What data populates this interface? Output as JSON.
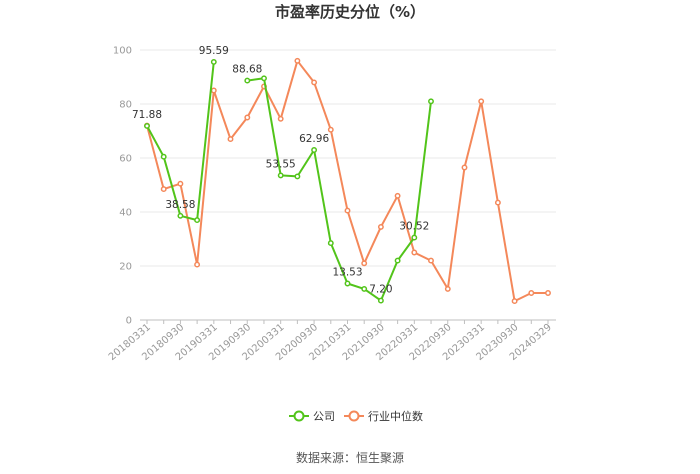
{
  "chart_data": {
    "type": "line",
    "title": "市盈率历史分位（%）",
    "source": "数据来源：恒生聚源",
    "ylim": [
      0,
      100
    ],
    "yticks": [
      0,
      20,
      40,
      60,
      80,
      100
    ],
    "grid": true,
    "legend_position": "bottom",
    "x": [
      "20180331",
      "20180630",
      "20180930",
      "20181231",
      "20190331",
      "20190630",
      "20190930",
      "20191231",
      "20200331",
      "20200630",
      "20200930",
      "20201231",
      "20210331",
      "20210630",
      "20210930",
      "20211231",
      "20220331",
      "20220630",
      "20220930",
      "20221231",
      "20230331",
      "20230630",
      "20230930",
      "20231231",
      "20240329"
    ],
    "x_tick_labels": [
      "20180331",
      "20180930",
      "20190331",
      "20190930",
      "20200331",
      "20200930",
      "20210331",
      "20210930",
      "20220331",
      "20220930",
      "20230331",
      "20230930",
      "20240329"
    ],
    "series": [
      {
        "name": "公司",
        "color": "#52c41a",
        "values": [
          71.88,
          60.5,
          38.58,
          37.0,
          95.59,
          null,
          88.68,
          89.5,
          53.55,
          53.2,
          62.96,
          28.5,
          13.53,
          11.5,
          7.2,
          22.0,
          30.52,
          81.0,
          null,
          null,
          null,
          null,
          null,
          null,
          null
        ],
        "labels": {
          "0": "71.88",
          "2": "38.58",
          "4": "95.59",
          "6": "88.68",
          "8": "53.55",
          "10": "62.96",
          "12": "13.53",
          "14": "7.20",
          "16": "30.52"
        }
      },
      {
        "name": "行业中位数",
        "color": "#f4885a",
        "values": [
          72.0,
          48.5,
          50.5,
          20.5,
          85.0,
          67.0,
          75.0,
          86.5,
          74.5,
          96.0,
          88.0,
          70.5,
          40.5,
          21.0,
          34.5,
          46.0,
          25.0,
          22.0,
          11.5,
          56.5,
          81.0,
          43.5,
          7.0,
          10.0,
          10.0
        ]
      }
    ]
  }
}
